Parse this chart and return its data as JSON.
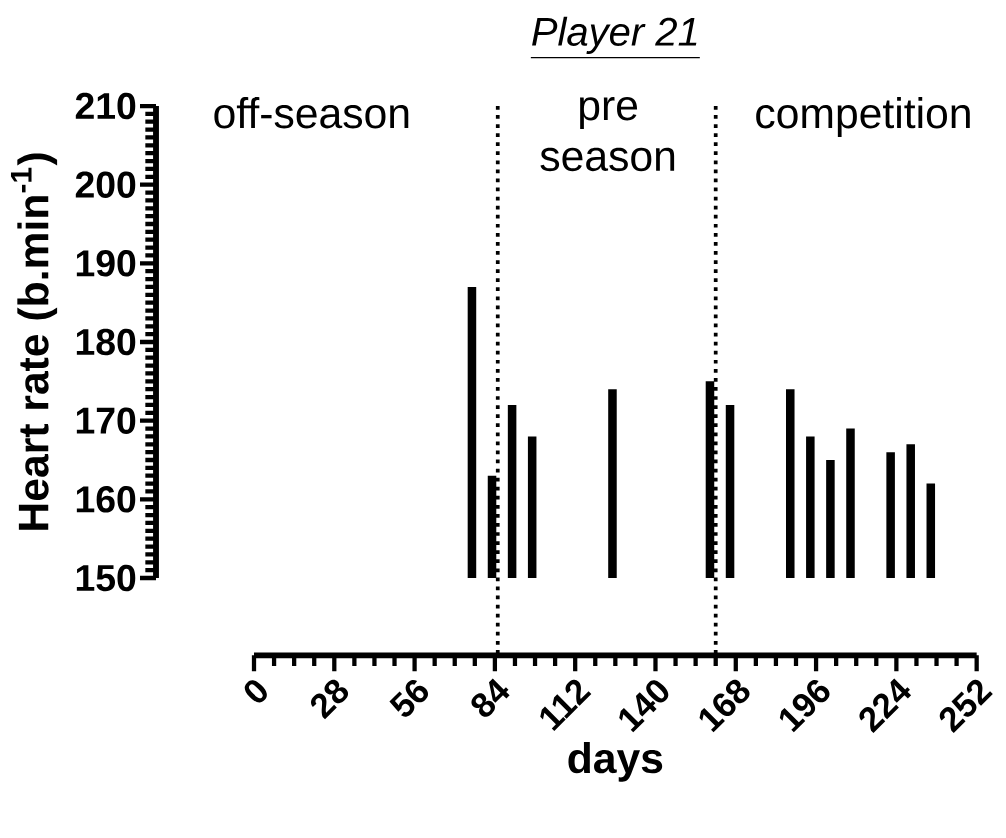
{
  "chart_data": {
    "type": "bar",
    "title": "Player 21",
    "xlabel": "days",
    "ylabel": "Heart rate (b.min$^{-1}$)",
    "x": [
      76,
      83,
      90,
      97,
      125,
      159,
      166,
      187,
      194,
      201,
      208,
      222,
      229,
      236
    ],
    "values": [
      187,
      163,
      172,
      168,
      174,
      175,
      172,
      174,
      168,
      165,
      169,
      166,
      167,
      162
    ],
    "color": "#000000",
    "xlim": [
      0,
      252
    ],
    "xticks": [
      0,
      28,
      56,
      84,
      112,
      140,
      168,
      196,
      224,
      252
    ],
    "ylim": [
      150,
      210
    ],
    "yticks": [
      150,
      160,
      170,
      180,
      190,
      200,
      210
    ],
    "ref_lines": [
      {
        "axis": "x",
        "value": 85,
        "line_style": "dotted"
      },
      {
        "axis": "x",
        "value": 161,
        "line_style": "dotted"
      }
    ],
    "annotations": [
      "off-season",
      "pre season",
      "competition"
    ],
    "grid": false
  }
}
